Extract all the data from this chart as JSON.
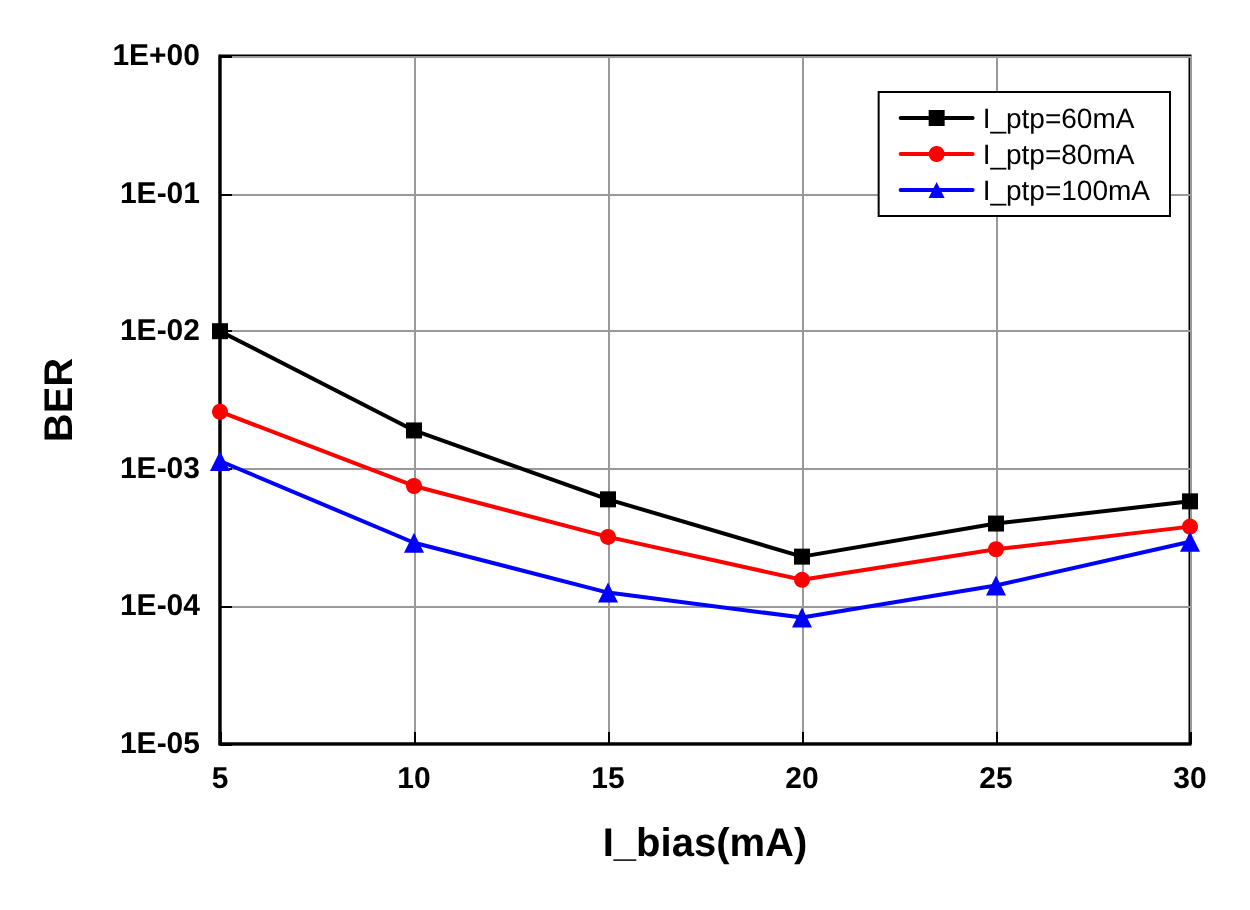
{
  "chart_data": {
    "type": "line",
    "xlabel": "I_bias(mA)",
    "ylabel": "BER",
    "log": "y",
    "grid": true,
    "legend": "top right",
    "line_style": "solid",
    "x": [
      5,
      10,
      15,
      20,
      25,
      30
    ],
    "xlim": [
      5,
      30
    ],
    "xticks": [
      5,
      10,
      15,
      20,
      25,
      30
    ],
    "ylim": [
      1e-05,
      1
    ],
    "yticks": [
      {
        "value": 1e-05,
        "label": "1E-05"
      },
      {
        "value": 0.0001,
        "label": "1E-04"
      },
      {
        "value": 0.001,
        "label": "1E-03"
      },
      {
        "value": 0.01,
        "label": "1E-02"
      },
      {
        "value": 0.1,
        "label": "1E-01"
      },
      {
        "value": 1,
        "label": "1E+00"
      }
    ],
    "series": [
      {
        "name": "I_ptp=60mA",
        "color": "#000000",
        "marker": "square",
        "values": [
          0.01,
          0.0019,
          0.0006,
          0.00023,
          0.0004,
          0.00058
        ]
      },
      {
        "name": "I_ptp=80mA",
        "color": "#ff0000",
        "marker": "circle",
        "values": [
          0.0026,
          0.00075,
          0.00032,
          0.000156,
          0.00026,
          0.00038
        ]
      },
      {
        "name": "I_ptp=100mA",
        "color": "#0000ff",
        "marker": "triangle",
        "values": [
          0.00114,
          0.00029,
          0.000126,
          8.3e-05,
          0.000142,
          0.000295
        ]
      }
    ]
  }
}
